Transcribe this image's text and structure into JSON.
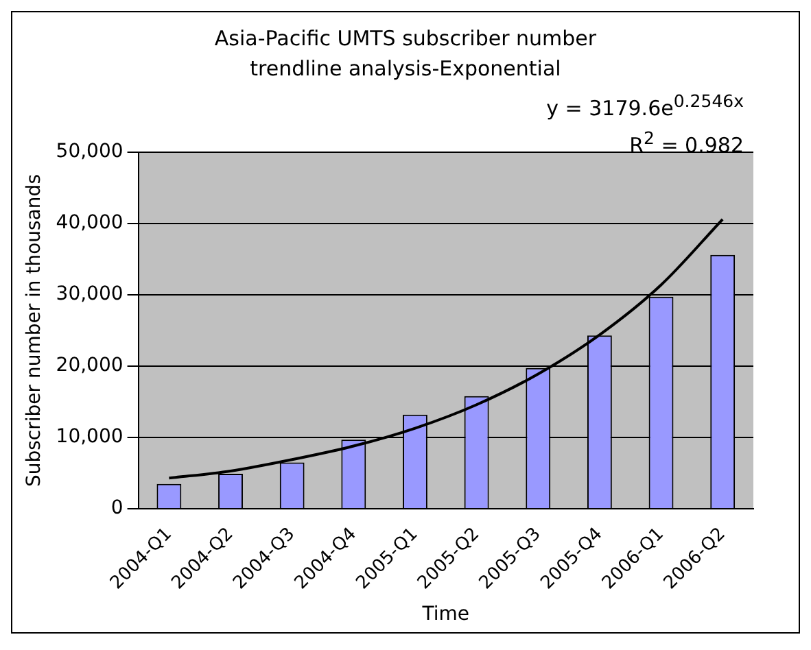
{
  "chart_data": {
    "type": "bar",
    "title": "Asia-Pacific UMTS subscriber number trendline analysis-Exponential",
    "xlabel": "Time",
    "ylabel": "Subscriber number in thousands",
    "categories": [
      "2004-Q1",
      "2004-Q2",
      "2004-Q3",
      "2004-Q4",
      "2005-Q1",
      "2005-Q2",
      "2005-Q3",
      "2005-Q4",
      "2006-Q1",
      "2006-Q2"
    ],
    "series": [
      {
        "color": "#9999ff",
        "values": [
          3500,
          4900,
          6500,
          9700,
          13200,
          15800,
          19750,
          24300,
          29750,
          35600
        ]
      },
      {
        "type": "line",
        "color": "#000000",
        "values": [
          4300,
          5300,
          6900,
          8800,
          11300,
          14600,
          18900,
          24400,
          31400,
          40600
        ]
      }
    ],
    "ylim": [
      0,
      50000
    ],
    "yticks": [
      {
        "value": 0,
        "label": "0"
      },
      {
        "value": 10000,
        "label": "10,000"
      },
      {
        "value": 20000,
        "label": "20,000"
      },
      {
        "value": 30000,
        "label": "30,000"
      },
      {
        "value": 40000,
        "label": "40,000"
      },
      {
        "value": 50000,
        "label": "50,000"
      }
    ],
    "grid": "y",
    "legend": false,
    "marker": "none",
    "line_style": "solid",
    "annotations": [
      "y = 3179.6e$^{0.2546x}$",
      "R$^{2}$ = 0.982"
    ]
  }
}
